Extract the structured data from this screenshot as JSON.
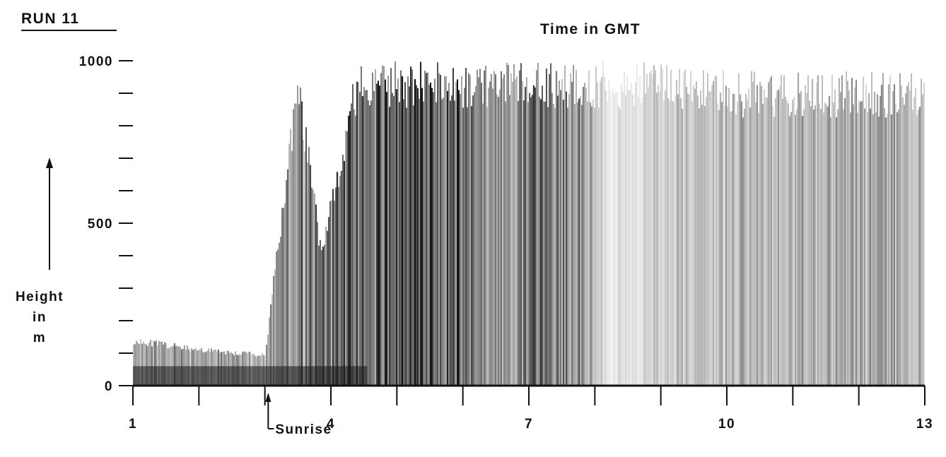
{
  "chart_data": {
    "type": "heatmap",
    "run_label": "RUN 11",
    "title": "Time in GMT",
    "ylabel_lines": [
      "Height",
      "in",
      "m"
    ],
    "x_range": [
      1,
      13
    ],
    "y_range": [
      0,
      1000
    ],
    "x_tick_labels": [
      {
        "value": 1,
        "label": "1"
      },
      {
        "value": 4,
        "label": "4"
      },
      {
        "value": 7,
        "label": "7"
      },
      {
        "value": 10,
        "label": "10"
      },
      {
        "value": 13,
        "label": "13"
      }
    ],
    "x_minor_ticks": [
      2,
      3,
      5,
      6,
      8,
      9,
      11,
      12
    ],
    "y_tick_labels": [
      {
        "value": 0,
        "label": "0"
      },
      {
        "value": 500,
        "label": "500"
      },
      {
        "value": 1000,
        "label": "1000"
      }
    ],
    "y_minor_ticks": [
      100,
      200,
      300,
      400,
      600,
      700,
      800,
      900
    ],
    "annotation": {
      "text": "Sunrise",
      "x": 3.05
    },
    "echo_top_profile": [
      {
        "x": 1.0,
        "top": 150,
        "intensity": 0.55
      },
      {
        "x": 2.0,
        "top": 120,
        "intensity": 0.55
      },
      {
        "x": 3.0,
        "top": 100,
        "intensity": 0.5
      },
      {
        "x": 3.5,
        "top": 1000,
        "intensity": 0.75
      },
      {
        "x": 3.85,
        "top": 450,
        "intensity": 0.8
      },
      {
        "x": 4.4,
        "top": 1000,
        "intensity": 0.85
      },
      {
        "x": 5.0,
        "top": 1000,
        "intensity": 0.97
      },
      {
        "x": 6.0,
        "top": 1000,
        "intensity": 0.92
      },
      {
        "x": 6.8,
        "top": 1000,
        "intensity": 0.55
      },
      {
        "x": 7.3,
        "top": 1000,
        "intensity": 0.9
      },
      {
        "x": 7.9,
        "top": 1000,
        "intensity": 0.55
      },
      {
        "x": 8.2,
        "top": 1000,
        "intensity": 0.12
      },
      {
        "x": 9.0,
        "top": 1000,
        "intensity": 0.3
      },
      {
        "x": 10.0,
        "top": 970,
        "intensity": 0.4
      },
      {
        "x": 11.0,
        "top": 970,
        "intensity": 0.45
      },
      {
        "x": 12.0,
        "top": 970,
        "intensity": 0.5
      },
      {
        "x": 13.0,
        "top": 960,
        "intensity": 0.45
      }
    ],
    "colors": {
      "echo": "#141414",
      "background": "#ffffff",
      "axis": "#111111"
    }
  }
}
